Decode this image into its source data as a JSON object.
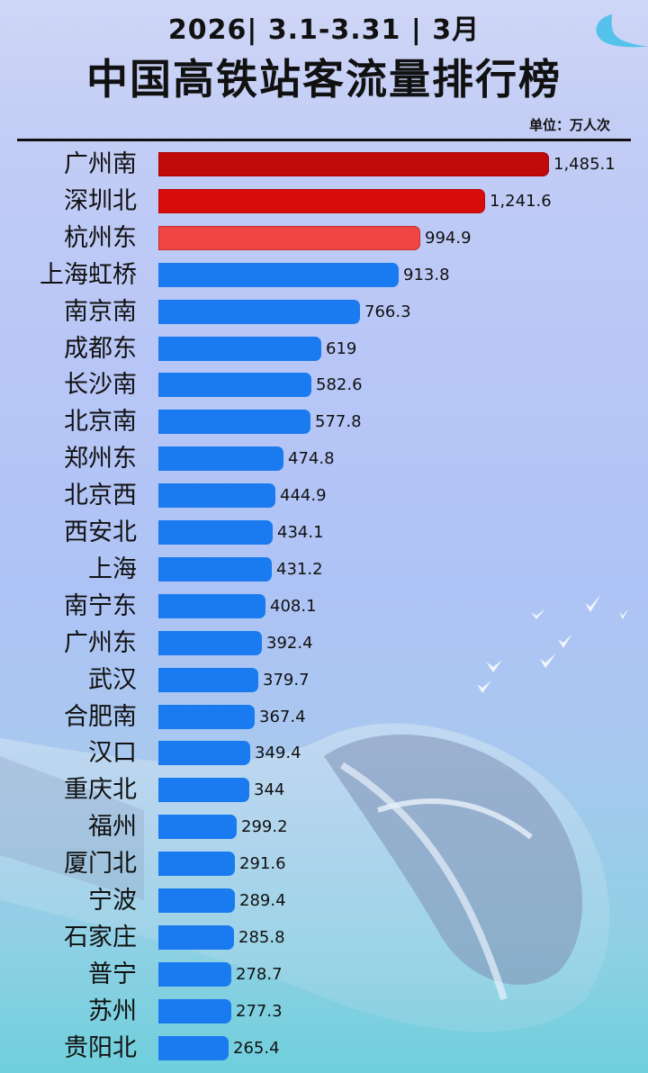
{
  "header": {
    "headline": "2026|  3.1-3.31  | 3月",
    "title": "中国高铁站客流量排行榜",
    "unit": "单位：万人次"
  },
  "colors": {
    "rank1": "#c00a0a",
    "rank2": "#d90c0c",
    "rank3": "#f04545",
    "default": "#1a7bf0",
    "text": "#111111"
  },
  "rows": [
    {
      "name": "广州南",
      "value": 1485.1,
      "display": "1,485.1"
    },
    {
      "name": "深圳北",
      "value": 1241.6,
      "display": "1,241.6"
    },
    {
      "name": "杭州东",
      "value": 994.9,
      "display": "994.9"
    },
    {
      "name": "上海虹桥",
      "value": 913.8,
      "display": "913.8"
    },
    {
      "name": "南京南",
      "value": 766.3,
      "display": "766.3"
    },
    {
      "name": "成都东",
      "value": 619,
      "display": "619"
    },
    {
      "name": "长沙南",
      "value": 582.6,
      "display": "582.6"
    },
    {
      "name": "北京南",
      "value": 577.8,
      "display": "577.8"
    },
    {
      "name": "郑州东",
      "value": 474.8,
      "display": "474.8"
    },
    {
      "name": "北京西",
      "value": 444.9,
      "display": "444.9"
    },
    {
      "name": "西安北",
      "value": 434.1,
      "display": "434.1"
    },
    {
      "name": "上海",
      "value": 431.2,
      "display": "431.2"
    },
    {
      "name": "南宁东",
      "value": 408.1,
      "display": "408.1"
    },
    {
      "name": "广州东",
      "value": 392.4,
      "display": "392.4"
    },
    {
      "name": "武汉",
      "value": 379.7,
      "display": "379.7"
    },
    {
      "name": "合肥南",
      "value": 367.4,
      "display": "367.4"
    },
    {
      "name": "汉口",
      "value": 349.4,
      "display": "349.4"
    },
    {
      "name": "重庆北",
      "value": 344,
      "display": "344"
    },
    {
      "name": "福州",
      "value": 299.2,
      "display": "299.2"
    },
    {
      "name": "厦门北",
      "value": 291.6,
      "display": "291.6"
    },
    {
      "name": "宁波",
      "value": 289.4,
      "display": "289.4"
    },
    {
      "name": "石家庄",
      "value": 285.8,
      "display": "285.8"
    },
    {
      "name": "普宁",
      "value": 278.7,
      "display": "278.7"
    },
    {
      "name": "苏州",
      "value": 277.3,
      "display": "277.3"
    },
    {
      "name": "贵阳北",
      "value": 265.4,
      "display": "265.4"
    }
  ],
  "chart_data": {
    "type": "bar",
    "orientation": "horizontal",
    "title": "中国高铁站客流量排行榜",
    "subtitle": "2026| 3.1-3.31 | 3月",
    "xlabel": "",
    "ylabel": "",
    "unit": "万人次",
    "grid": false,
    "legend": null,
    "categories": [
      "广州南",
      "深圳北",
      "杭州东",
      "上海虹桥",
      "南京南",
      "成都东",
      "长沙南",
      "北京南",
      "郑州东",
      "北京西",
      "西安北",
      "上海",
      "南宁东",
      "广州东",
      "武汉",
      "合肥南",
      "汉口",
      "重庆北",
      "福州",
      "厦门北",
      "宁波",
      "石家庄",
      "普宁",
      "苏州",
      "贵阳北"
    ],
    "values": [
      1485.1,
      1241.6,
      994.9,
      913.8,
      766.3,
      619,
      582.6,
      577.8,
      474.8,
      444.9,
      434.1,
      431.2,
      408.1,
      392.4,
      379.7,
      367.4,
      349.4,
      344,
      299.2,
      291.6,
      289.4,
      285.8,
      278.7,
      277.3,
      265.4
    ],
    "xlim": [
      0,
      1485.1
    ]
  }
}
